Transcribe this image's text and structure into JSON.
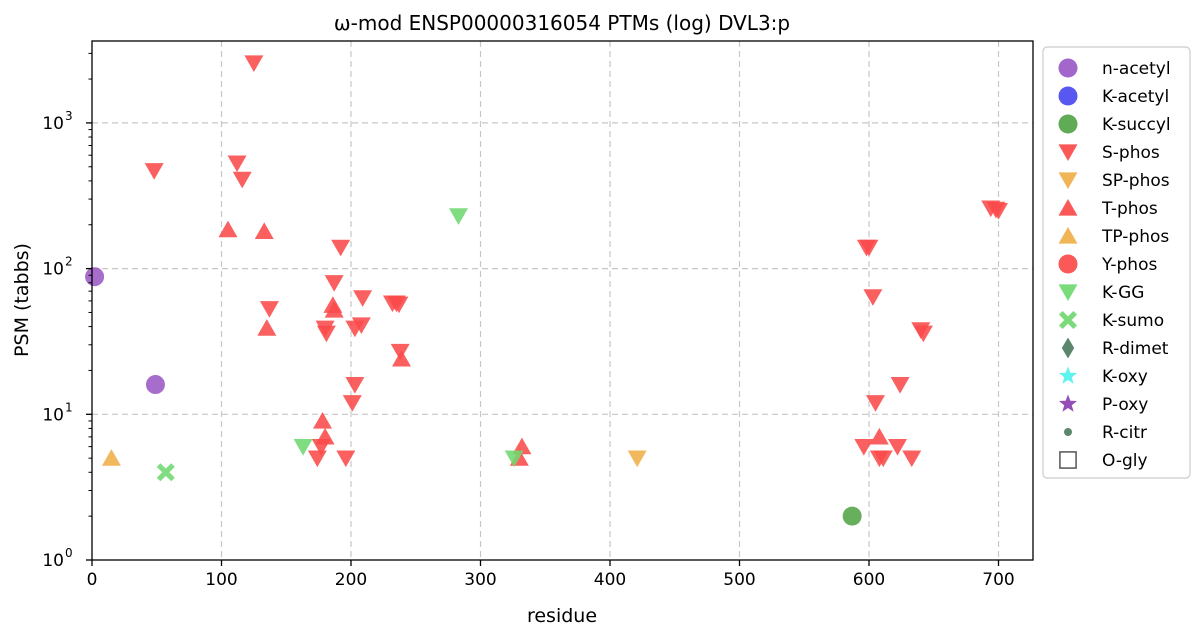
{
  "chart_data": {
    "type": "scatter",
    "title": "ω-mod ENSP00000316054 PTMs (log) DVL3:p",
    "xlabel": "residue",
    "ylabel": "PSM (tabbs)",
    "xlim": [
      0,
      730
    ],
    "ylim": [
      1,
      3500
    ],
    "yscale": "log",
    "grid": true,
    "legend_position": "outside-right",
    "x_ticks": [
      {
        "value": 0,
        "label": "0"
      },
      {
        "value": 100,
        "label": "100"
      },
      {
        "value": 200,
        "label": "200"
      },
      {
        "value": 300,
        "label": "300"
      },
      {
        "value": 400,
        "label": "400"
      },
      {
        "value": 500,
        "label": "500"
      },
      {
        "value": 600,
        "label": "600"
      },
      {
        "value": 700,
        "label": "700"
      }
    ],
    "y_ticks": [
      {
        "value": 1,
        "base": "10",
        "exp": "0"
      },
      {
        "value": 10,
        "base": "10",
        "exp": "1"
      },
      {
        "value": 100,
        "base": "10",
        "exp": "2"
      },
      {
        "value": 1000,
        "base": "10",
        "exp": "3"
      }
    ],
    "series": [
      {
        "name": "n-acetyl",
        "marker": "circle",
        "color": "#9b59c6",
        "points": [
          [
            2,
            88
          ],
          [
            49,
            16
          ]
        ]
      },
      {
        "name": "K-acetyl",
        "marker": "circle",
        "color": "#4a4af0",
        "points": []
      },
      {
        "name": "K-succyl",
        "marker": "circle",
        "color": "#52a447",
        "points": [
          [
            587,
            2
          ]
        ]
      },
      {
        "name": "S-phos",
        "marker": "triangle-down",
        "color": "#fb4a4a",
        "points": [
          [
            48,
            470
          ],
          [
            112,
            530
          ],
          [
            116,
            410
          ],
          [
            125,
            2580
          ],
          [
            137,
            53
          ],
          [
            180,
            39
          ],
          [
            181,
            36
          ],
          [
            187,
            80
          ],
          [
            192,
            140
          ],
          [
            196,
            5
          ],
          [
            201,
            12
          ],
          [
            203,
            16
          ],
          [
            203,
            39
          ],
          [
            208,
            41
          ],
          [
            209,
            63
          ],
          [
            232,
            58
          ],
          [
            235,
            58
          ],
          [
            237,
            57
          ],
          [
            238,
            27
          ],
          [
            174,
            5
          ],
          [
            177,
            6
          ],
          [
            598,
            140
          ],
          [
            600,
            140
          ],
          [
            603,
            64
          ],
          [
            605,
            12
          ],
          [
            596,
            6
          ],
          [
            608,
            5
          ],
          [
            611,
            5
          ],
          [
            622,
            6
          ],
          [
            624,
            16
          ],
          [
            633,
            5
          ],
          [
            640,
            38
          ],
          [
            642,
            36
          ],
          [
            694,
            260
          ],
          [
            698,
            255
          ],
          [
            700,
            250
          ]
        ]
      },
      {
        "name": "SP-phos",
        "marker": "triangle-down",
        "color": "#f0ae48",
        "points": [
          [
            421,
            5
          ]
        ]
      },
      {
        "name": "T-phos",
        "marker": "triangle-up",
        "color": "#fb4a4a",
        "points": [
          [
            105,
            185
          ],
          [
            133,
            180
          ],
          [
            135,
            39
          ],
          [
            178,
            9
          ],
          [
            180,
            7
          ],
          [
            186,
            56
          ],
          [
            187,
            52
          ],
          [
            239,
            24
          ],
          [
            330,
            5
          ],
          [
            332,
            6
          ],
          [
            608,
            7
          ]
        ]
      },
      {
        "name": "TP-phos",
        "marker": "triangle-up",
        "color": "#f0ae48",
        "points": [
          [
            15,
            5
          ]
        ]
      },
      {
        "name": "Y-phos",
        "marker": "circle",
        "color": "#fb4a4a",
        "points": []
      },
      {
        "name": "K-GG",
        "marker": "triangle-down",
        "color": "#6fd86f",
        "points": [
          [
            163,
            6
          ],
          [
            283,
            230
          ],
          [
            326,
            5
          ]
        ]
      },
      {
        "name": "K-sumo",
        "marker": "x",
        "color": "#6fd86f",
        "points": [
          [
            57,
            4
          ]
        ]
      },
      {
        "name": "R-dimet",
        "marker": "diamond",
        "color": "#4e7d62",
        "points": []
      },
      {
        "name": "K-oxy",
        "marker": "star",
        "color": "#4ff2ee",
        "points": []
      },
      {
        "name": "P-oxy",
        "marker": "star",
        "color": "#8a3fb1",
        "points": []
      },
      {
        "name": "R-citr",
        "marker": "small-circle",
        "color": "#4e7d62",
        "points": []
      },
      {
        "name": "O-gly",
        "marker": "square-open",
        "color": "#555555",
        "points": []
      }
    ]
  }
}
